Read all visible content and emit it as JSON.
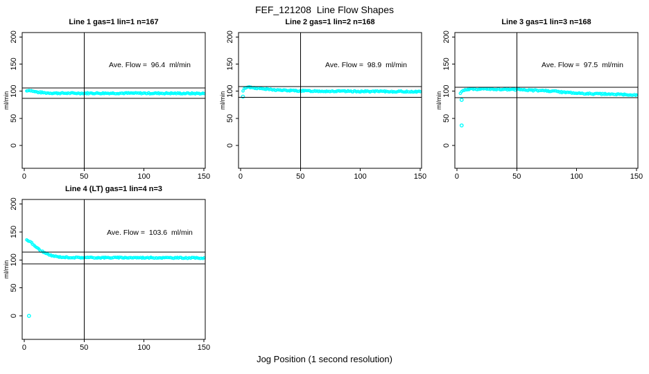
{
  "page": {
    "title": "FEF_121208  Line Flow Shapes",
    "xlabel": "Jog Position (1 second resolution)",
    "point_color": "#00FFFF",
    "axis_color": "#000000"
  },
  "chart_data": [
    {
      "type": "scatter",
      "title": "Line 1 gas=1 lin=1 n=167",
      "annotation": "Ave. Flow =  96.4  ml/min",
      "ave_flow_ml_min": 96.4,
      "n_points": 167,
      "ylabel": "ml/min",
      "xlim": [
        -1.7,
        151.2
      ],
      "ylim": [
        -42,
        208
      ],
      "x_ticks": [
        0,
        50,
        100,
        150
      ],
      "y_ticks": [
        0,
        50,
        100,
        150,
        200
      ],
      "vline_x": 50,
      "ref_lines_y": [
        106.0,
        86.8
      ],
      "grid": false,
      "series": {
        "x_start": 2,
        "x_end": 150,
        "step": 1,
        "noise": 1.1,
        "seed": 7,
        "band_keypoints": [
          [
            2,
            100.5
          ],
          [
            3,
            101.5
          ],
          [
            5,
            101.5
          ],
          [
            8,
            99.5
          ],
          [
            12,
            98
          ],
          [
            18,
            96.8
          ],
          [
            25,
            96.4
          ],
          [
            40,
            96.2
          ],
          [
            80,
            96.3
          ],
          [
            120,
            96.1
          ],
          [
            150,
            95.8
          ]
        ]
      },
      "outliers": []
    },
    {
      "type": "scatter",
      "title": "Line 2 gas=1 lin=2 n=168",
      "annotation": "Ave. Flow =  98.9  ml/min",
      "ave_flow_ml_min": 98.9,
      "n_points": 168,
      "ylabel": "ml/min",
      "xlim": [
        -1.7,
        151.2
      ],
      "ylim": [
        -42,
        208
      ],
      "x_ticks": [
        0,
        50,
        100,
        150
      ],
      "y_ticks": [
        0,
        50,
        100,
        150,
        200
      ],
      "vline_x": 50,
      "ref_lines_y": [
        108.8,
        89.0
      ],
      "grid": false,
      "series": {
        "x_start": 2,
        "x_end": 150,
        "step": 1,
        "noise": 1.1,
        "seed": 13,
        "band_keypoints": [
          [
            2,
            100
          ],
          [
            3,
            104
          ],
          [
            4,
            106.5
          ],
          [
            6,
            107.5
          ],
          [
            9,
            107
          ],
          [
            14,
            105.5
          ],
          [
            20,
            104
          ],
          [
            28,
            102.5
          ],
          [
            38,
            101.3
          ],
          [
            50,
            100.6
          ],
          [
            70,
            100
          ],
          [
            100,
            99.6
          ],
          [
            130,
            99.3
          ],
          [
            150,
            99.2
          ]
        ]
      },
      "outliers": [
        [
          2,
          90
        ]
      ]
    },
    {
      "type": "scatter",
      "title": "Line 3 gas=1 lin=3 n=168",
      "annotation": "Ave. Flow =  97.5  ml/min",
      "ave_flow_ml_min": 97.5,
      "n_points": 168,
      "ylabel": "ml/min",
      "xlim": [
        -1.7,
        151.2
      ],
      "ylim": [
        -42,
        208
      ],
      "x_ticks": [
        0,
        50,
        100,
        150
      ],
      "y_ticks": [
        0,
        50,
        100,
        150,
        200
      ],
      "vline_x": 50,
      "ref_lines_y": [
        107.3,
        87.8
      ],
      "grid": false,
      "series": {
        "x_start": 3,
        "x_end": 150,
        "step": 1,
        "noise": 1.2,
        "seed": 21,
        "band_keypoints": [
          [
            3,
            97
          ],
          [
            4,
            99.5
          ],
          [
            6,
            101.5
          ],
          [
            9,
            103
          ],
          [
            13,
            103.8
          ],
          [
            20,
            104
          ],
          [
            35,
            103.8
          ],
          [
            50,
            103
          ],
          [
            65,
            101.5
          ],
          [
            80,
            100
          ],
          [
            100,
            96
          ],
          [
            125,
            94.5
          ],
          [
            150,
            93
          ]
        ]
      },
      "outliers": [
        [
          4,
          84
        ],
        [
          4,
          37
        ]
      ]
    },
    {
      "type": "scatter",
      "title": "Line 4 (LT) gas=1 lin=4 n=3",
      "annotation": "Ave. Flow =  103.6  ml/min",
      "ave_flow_ml_min": 103.6,
      "n_points": 3,
      "ylabel": "ml/min",
      "xlim": [
        -1.7,
        151.2
      ],
      "ylim": [
        -42,
        208
      ],
      "x_ticks": [
        0,
        50,
        100,
        150
      ],
      "y_ticks": [
        0,
        50,
        100,
        150,
        200
      ],
      "vline_x": 50,
      "ref_lines_y": [
        114.0,
        93.2
      ],
      "grid": false,
      "series": {
        "x_start": 2,
        "x_end": 150,
        "step": 1,
        "noise": 0.9,
        "seed": 31,
        "band_keypoints": [
          [
            2,
            136
          ],
          [
            4,
            134
          ],
          [
            6,
            130.5
          ],
          [
            8,
            126.5
          ],
          [
            11,
            121
          ],
          [
            14,
            116.5
          ],
          [
            17,
            112.5
          ],
          [
            20,
            109.5
          ],
          [
            24,
            107
          ],
          [
            28,
            105.6
          ],
          [
            33,
            104.8
          ],
          [
            40,
            104.3
          ],
          [
            60,
            104
          ],
          [
            90,
            104
          ],
          [
            120,
            103.8
          ],
          [
            150,
            103.4
          ]
        ]
      },
      "outliers": [
        [
          4,
          0
        ]
      ]
    }
  ]
}
